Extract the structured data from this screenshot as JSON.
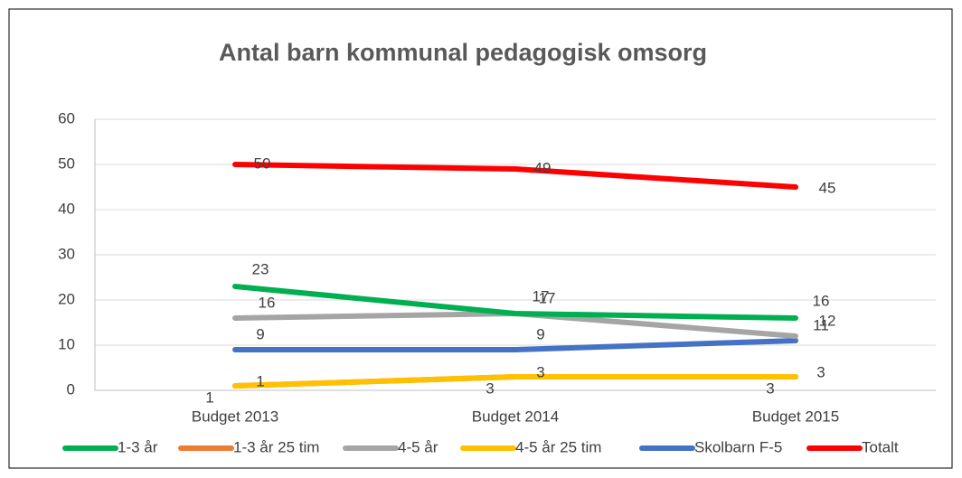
{
  "chart_data": {
    "type": "line",
    "title": "Antal barn kommunal pedagogisk omsorg",
    "categories": [
      "Budget 2013",
      "Budget 2014",
      "Budget 2015"
    ],
    "series": [
      {
        "name": "1-3 år",
        "color": "#00b050",
        "values": [
          23,
          17,
          16
        ]
      },
      {
        "name": "1-3 år 25 tim",
        "color": "#ed7d31",
        "values": [
          1,
          3,
          3
        ]
      },
      {
        "name": "4-5 år",
        "color": "#a5a5a5",
        "values": [
          16,
          17,
          12
        ]
      },
      {
        "name": "4-5 år 25 tim",
        "color": "#ffc000",
        "values": [
          1,
          3,
          3
        ]
      },
      {
        "name": "Skolbarn F-5",
        "color": "#4472c4",
        "values": [
          9,
          9,
          11
        ]
      },
      {
        "name": "Totalt",
        "color": "#ff0000",
        "values": [
          50,
          49,
          45
        ]
      }
    ],
    "ylim": [
      0,
      60
    ],
    "yticks": [
      0,
      10,
      20,
      30,
      40,
      50,
      60
    ],
    "grid": true,
    "legend": "bottom"
  }
}
